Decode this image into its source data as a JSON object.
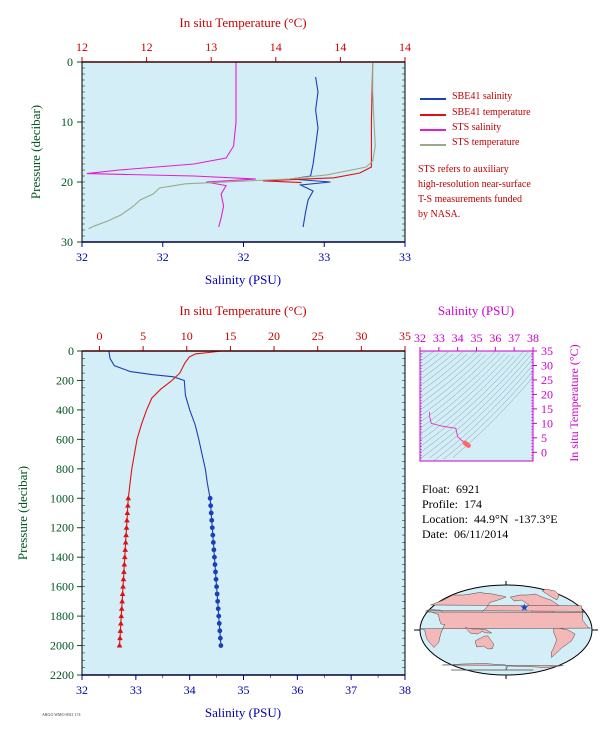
{
  "colors": {
    "plot_bg": "#d4eef8",
    "temp_axis": "#cc0000",
    "sal_axis": "#0000aa",
    "pressure_axis": "#005522",
    "sbe_salinity": "#1c3fb8",
    "sbe_temperature": "#dd1111",
    "sts_salinity": "#e020d0",
    "sts_temperature": "#9aaa88",
    "ts_axis": "#cc00cc",
    "ts_line": "#e040c0",
    "ts_marker": "#ff6666"
  },
  "chart_data": [
    {
      "id": "near-surface",
      "type": "line",
      "top_axis_title": "In situ Temperature (°C)",
      "top_ticks": [
        "12",
        "12",
        "13",
        "14",
        "14",
        "14"
      ],
      "xlabel": "Salinity (PSU)",
      "x_ticks": [
        "32",
        "32",
        "32",
        "33",
        "33"
      ],
      "ylabel": "Pressure (decibar)",
      "y_ticks": [
        "0",
        "10",
        "20",
        "30"
      ],
      "ylim": [
        30,
        0
      ],
      "salinity_range": [
        32.0,
        33.3
      ],
      "temperature_range": [
        12.0,
        14.5
      ],
      "series": [
        {
          "name": "SBE41 salinity",
          "axis": "salinity",
          "color_key": "sbe_salinity",
          "points": [
            [
              32.94,
              2.5
            ],
            [
              32.95,
              5
            ],
            [
              32.94,
              8
            ],
            [
              32.95,
              11
            ],
            [
              32.94,
              14
            ],
            [
              32.93,
              17
            ],
            [
              32.92,
              19
            ],
            [
              32.84,
              19.5
            ],
            [
              33.0,
              20
            ],
            [
              32.88,
              20.5
            ],
            [
              32.93,
              21.5
            ],
            [
              32.91,
              23
            ],
            [
              32.9,
              25
            ],
            [
              32.89,
              27.5
            ]
          ]
        },
        {
          "name": "SBE41 temperature",
          "axis": "temperature",
          "color_key": "sbe_temperature",
          "points": [
            [
              14.25,
              0
            ],
            [
              14.24,
              10
            ],
            [
              14.24,
              17.5
            ],
            [
              14.15,
              18.5
            ],
            [
              13.95,
              19.3
            ],
            [
              13.4,
              19.8
            ],
            [
              13.7,
              20.1
            ]
          ]
        },
        {
          "name": "STS salinity",
          "axis": "salinity",
          "color_key": "sts_salinity",
          "points": [
            [
              32.62,
              0
            ],
            [
              32.62,
              5
            ],
            [
              32.62,
              10
            ],
            [
              32.61,
              14
            ],
            [
              32.58,
              16
            ],
            [
              32.45,
              17
            ],
            [
              32.15,
              18
            ],
            [
              32.02,
              18.6
            ],
            [
              32.45,
              19
            ],
            [
              32.7,
              19.5
            ],
            [
              32.5,
              20
            ],
            [
              32.58,
              20.6
            ],
            [
              32.56,
              22
            ],
            [
              32.57,
              24
            ],
            [
              32.56,
              26
            ],
            [
              32.55,
              27.5
            ]
          ]
        },
        {
          "name": "STS temperature",
          "axis": "temperature",
          "color_key": "sts_temperature",
          "points": [
            [
              14.25,
              0
            ],
            [
              14.25,
              5
            ],
            [
              14.26,
              10
            ],
            [
              14.27,
              14
            ],
            [
              14.25,
              16.5
            ],
            [
              14.2,
              17.5
            ],
            [
              13.9,
              18.8
            ],
            [
              13.6,
              19.5
            ],
            [
              13.2,
              19.9
            ],
            [
              12.8,
              20.3
            ],
            [
              12.6,
              21
            ],
            [
              12.55,
              22
            ],
            [
              12.45,
              23
            ],
            [
              12.4,
              24
            ],
            [
              12.3,
              25.5
            ],
            [
              12.2,
              26.5
            ],
            [
              12.1,
              27.3
            ],
            [
              12.05,
              27.8
            ]
          ]
        }
      ]
    },
    {
      "id": "full-profile",
      "type": "line",
      "top_axis_title": "In situ Temperature (°C)",
      "top_ticks": [
        "0",
        "5",
        "10",
        "15",
        "20",
        "25",
        "30",
        "35"
      ],
      "xlabel": "Salinity (PSU)",
      "x_ticks": [
        "32",
        "33",
        "34",
        "35",
        "36",
        "37",
        "38"
      ],
      "ylabel": "Pressure (decibar)",
      "y_ticks": [
        "0",
        "200",
        "400",
        "600",
        "800",
        "1000",
        "1200",
        "1400",
        "1600",
        "1800",
        "2000",
        "2200"
      ],
      "ylim": [
        2200,
        0
      ],
      "xlim": [
        32,
        38
      ],
      "templim": [
        -2,
        35
      ],
      "series": [
        {
          "name": "Salinity",
          "axis": "salinity",
          "color_key": "sbe_salinity",
          "points": [
            [
              32.5,
              0
            ],
            [
              32.52,
              50
            ],
            [
              32.6,
              100
            ],
            [
              32.9,
              140
            ],
            [
              33.3,
              160
            ],
            [
              33.7,
              175
            ],
            [
              33.9,
              200
            ],
            [
              33.92,
              300
            ],
            [
              34.0,
              400
            ],
            [
              34.1,
              500
            ],
            [
              34.17,
              600
            ],
            [
              34.23,
              700
            ],
            [
              34.29,
              800
            ],
            [
              34.33,
              900
            ],
            [
              34.38,
              1000
            ]
          ],
          "marker_points": [
            [
              34.38,
              1000
            ],
            [
              34.39,
              1050
            ],
            [
              34.4,
              1100
            ],
            [
              34.41,
              1150
            ],
            [
              34.42,
              1200
            ],
            [
              34.43,
              1250
            ],
            [
              34.44,
              1300
            ],
            [
              34.45,
              1350
            ],
            [
              34.46,
              1400
            ],
            [
              34.47,
              1450
            ],
            [
              34.48,
              1500
            ],
            [
              34.49,
              1550
            ],
            [
              34.5,
              1600
            ],
            [
              34.51,
              1650
            ],
            [
              34.52,
              1700
            ],
            [
              34.53,
              1750
            ],
            [
              34.54,
              1800
            ],
            [
              34.55,
              1850
            ],
            [
              34.56,
              1900
            ],
            [
              34.57,
              1950
            ],
            [
              34.58,
              2000
            ]
          ]
        },
        {
          "name": "Temperature",
          "axis": "temperature",
          "color_key": "sbe_temperature",
          "points": [
            [
              14.0,
              0
            ],
            [
              12.5,
              10
            ],
            [
              11.0,
              20
            ],
            [
              10.3,
              40
            ],
            [
              9.8,
              80
            ],
            [
              9.2,
              150
            ],
            [
              8.3,
              200
            ],
            [
              7.0,
              260
            ],
            [
              6.0,
              320
            ],
            [
              5.4,
              400
            ],
            [
              4.8,
              500
            ],
            [
              4.3,
              600
            ],
            [
              4.0,
              700
            ],
            [
              3.7,
              800
            ],
            [
              3.5,
              900
            ],
            [
              3.3,
              1000
            ]
          ],
          "marker_points": [
            [
              3.3,
              1000
            ],
            [
              3.25,
              1050
            ],
            [
              3.2,
              1100
            ],
            [
              3.15,
              1150
            ],
            [
              3.1,
              1200
            ],
            [
              3.05,
              1250
            ],
            [
              3.0,
              1300
            ],
            [
              2.95,
              1350
            ],
            [
              2.9,
              1400
            ],
            [
              2.85,
              1450
            ],
            [
              2.8,
              1500
            ],
            [
              2.75,
              1550
            ],
            [
              2.7,
              1600
            ],
            [
              2.65,
              1650
            ],
            [
              2.6,
              1700
            ],
            [
              2.55,
              1750
            ],
            [
              2.5,
              1800
            ],
            [
              2.45,
              1850
            ],
            [
              2.4,
              1900
            ],
            [
              2.35,
              1950
            ],
            [
              2.3,
              2000
            ]
          ]
        }
      ]
    },
    {
      "id": "ts-diagram",
      "type": "line",
      "top_axis_title": "Salinity (PSU)",
      "top_ticks": [
        "32",
        "33",
        "34",
        "35",
        "36",
        "37",
        "38"
      ],
      "right_axis_title": "In situ Temperature (°C)",
      "right_ticks": [
        "0",
        "5",
        "10",
        "15",
        "20",
        "25",
        "30",
        "35"
      ],
      "xlim": [
        32,
        38
      ],
      "ylim": [
        -3,
        35
      ],
      "series": [
        {
          "name": "T-S profile",
          "color_key": "ts_line",
          "points": [
            [
              32.5,
              14.0
            ],
            [
              32.52,
              12.0
            ],
            [
              32.6,
              10.0
            ],
            [
              33.2,
              9.0
            ],
            [
              33.9,
              8.3
            ],
            [
              34.0,
              5.4
            ],
            [
              34.1,
              4.8
            ],
            [
              34.2,
              4.2
            ],
            [
              34.33,
              3.6
            ],
            [
              34.38,
              3.3
            ]
          ],
          "marker_points": [
            [
              34.38,
              3.3
            ],
            [
              34.43,
              3.0
            ],
            [
              34.48,
              2.8
            ],
            [
              34.53,
              2.5
            ],
            [
              34.58,
              2.3
            ]
          ]
        }
      ]
    }
  ],
  "legend": {
    "items": [
      {
        "label": "SBE41 salinity",
        "color_key": "sbe_salinity"
      },
      {
        "label": "SBE41 temperature",
        "color_key": "sbe_temperature"
      },
      {
        "label": "STS salinity",
        "color_key": "sts_salinity"
      },
      {
        "label": "STS temperature",
        "color_key": "sts_temperature"
      }
    ],
    "note_lines": [
      "STS refers to auxiliary",
      "high-resolution near-surface",
      "T-S measurements funded",
      "by NASA."
    ]
  },
  "float_info": {
    "float": "Float:  6921",
    "profile": "Profile:  174",
    "location": "Location:  44.9°N  -137.3°E",
    "date": "Date:  06/11/2014"
  },
  "map": {
    "float_position_lat": 44.9,
    "float_position_lon": -137.3,
    "projection": "robinson-pacific-centered",
    "marker": "star",
    "marker_color": "#1144cc",
    "land_color": "#f4b8b8",
    "ocean_color": "#d4eef8"
  },
  "footnote": "ARGO WMO 6921 174"
}
